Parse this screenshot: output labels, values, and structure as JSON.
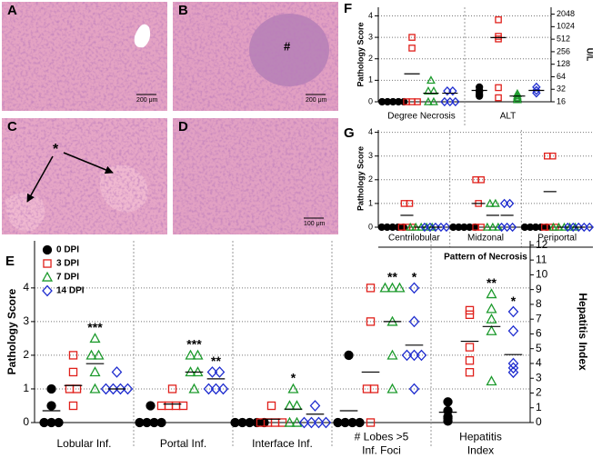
{
  "images": [
    {
      "label": "A",
      "scale": "200 μm"
    },
    {
      "label": "B",
      "scale": "200 μm",
      "mark": "#"
    },
    {
      "label": "C",
      "mark": "*"
    },
    {
      "label": "D",
      "scale": "100 μm"
    }
  ],
  "chart_data": [
    {
      "type": "dot",
      "label": "E",
      "ylabel": "Pathology Score",
      "y2label": "Hepatitis Index",
      "ylim": [
        0,
        5.4
      ],
      "yticks": [
        0,
        1,
        2,
        3,
        4
      ],
      "y2lim": [
        0,
        12.3
      ],
      "y2ticks": [
        0,
        1,
        2,
        3,
        4,
        5,
        6,
        7,
        8,
        9,
        10,
        11,
        12
      ],
      "grid": true,
      "legend": "upper left",
      "categories": [
        [
          "Lobular Inf."
        ],
        [
          "Portal Inf."
        ],
        [
          "Interface Inf."
        ],
        [
          "# Lobes >5",
          "Inf. Foci"
        ],
        [
          "Hepatitis",
          "Index"
        ]
      ],
      "category_axis": [
        "y",
        "y",
        "y",
        "y",
        "y2"
      ],
      "series": [
        {
          "name": "0 DPI",
          "color": "#000000",
          "marker": "circle",
          "filled": true,
          "values": [
            [
              1,
              0.5,
              0,
              0,
              0
            ],
            [
              0.5,
              0,
              0,
              0,
              0
            ],
            [
              0,
              0,
              0,
              0,
              0
            ],
            [
              2,
              0,
              0,
              0,
              0
            ],
            [
              1.4,
              0.8,
              0.4,
              0.3,
              0.1
            ]
          ],
          "means": [
            0.35,
            0.05,
            0,
            0.35,
            0.7
          ]
        },
        {
          "name": "3 DPI",
          "color": "#e0201b",
          "marker": "square",
          "filled": false,
          "values": [
            [
              2,
              1.5,
              1,
              1,
              0.5
            ],
            [
              1,
              0.5,
              0.5,
              0.5,
              0.5
            ],
            [
              0.5,
              0,
              0,
              0,
              0
            ],
            [
              4,
              3,
              1,
              1,
              0
            ],
            [
              7.6,
              7.3,
              5.1,
              4.2,
              3.4
            ]
          ],
          "means": [
            1.1,
            0.55,
            0.1,
            1.5,
            5.5
          ]
        },
        {
          "name": "7 DPI",
          "color": "#1c9a2c",
          "marker": "triangle",
          "filled": false,
          "values": [
            [
              2.5,
              2,
              2,
              1.5,
              1
            ],
            [
              2,
              2,
              1.5,
              1.5,
              1
            ],
            [
              1,
              0.5,
              0.5,
              0,
              0
            ],
            [
              4,
              4,
              4,
              3,
              2,
              1
            ],
            [
              8.7,
              7.7,
              7,
              6.2,
              2.8
            ]
          ],
          "means": [
            1.75,
            1.5,
            0.4,
            3,
            6.5
          ]
        },
        {
          "name": "14 DPI",
          "color": "#1f2dcf",
          "marker": "diamond",
          "filled": false,
          "values": [
            [
              1.5,
              1,
              1,
              1,
              1
            ],
            [
              1.5,
              1.5,
              1,
              1,
              1
            ],
            [
              0.5,
              0,
              0,
              0,
              0
            ],
            [
              4,
              3,
              2,
              2,
              2,
              1
            ],
            [
              7.5,
              6.2,
              4,
              3.7,
              3.4
            ]
          ],
          "means": [
            1,
            1.3,
            0.25,
            2.3,
            4.6
          ]
        }
      ],
      "annotations": [
        {
          "category": 0,
          "series": 2,
          "text": "***"
        },
        {
          "category": 1,
          "series": 2,
          "text": "***"
        },
        {
          "category": 1,
          "series": 3,
          "text": "**"
        },
        {
          "category": 2,
          "series": 2,
          "text": "*"
        },
        {
          "category": 3,
          "series": 2,
          "text": "**"
        },
        {
          "category": 3,
          "series": 3,
          "text": "*"
        },
        {
          "category": 4,
          "series": 2,
          "text": "**"
        },
        {
          "category": 4,
          "series": 3,
          "text": "*"
        }
      ]
    },
    {
      "type": "dot",
      "label": "F",
      "ylabel": "Pathology Score",
      "y2label": "U/L",
      "ylim": [
        0,
        4.4
      ],
      "yticks": [
        0,
        1,
        2,
        3,
        4
      ],
      "y2lim": [
        16,
        3000
      ],
      "y2scale": "log",
      "y2ticks": [
        16,
        32,
        64,
        128,
        256,
        512,
        1024,
        2048
      ],
      "grid": true,
      "categories": [
        [
          "Degree Necrosis"
        ],
        [
          "ALT"
        ]
      ],
      "category_axis": [
        "y",
        "y2"
      ],
      "series": [
        {
          "color": "#000000",
          "marker": "circle",
          "filled": true,
          "values": [
            [
              0,
              0,
              0,
              0,
              0
            ],
            [
              36,
              30,
              28,
              24,
              22
            ]
          ],
          "means": [
            0,
            30
          ]
        },
        {
          "color": "#e0201b",
          "marker": "square",
          "filled": false,
          "values": [
            [
              3,
              2.5,
              0,
              0,
              0
            ],
            [
              1500,
              600,
              520,
              35,
              20
            ]
          ],
          "means": [
            1.3,
            560
          ]
        },
        {
          "color": "#1c9a2c",
          "marker": "triangle",
          "filled": false,
          "values": [
            [
              1,
              0.5,
              0.5,
              0,
              0
            ],
            [
              25,
              22,
              20,
              18
            ]
          ],
          "means": [
            0.4,
            22
          ]
        },
        {
          "color": "#1f2dcf",
          "marker": "diamond",
          "filled": false,
          "values": [
            [
              0.5,
              0.5,
              0,
              0,
              0
            ],
            [
              36,
              30,
              26
            ]
          ],
          "means": [
            0.4,
            30
          ]
        }
      ]
    },
    {
      "type": "dot",
      "label": "G",
      "ylabel": "Pathology Score",
      "xlabel": "Pattern of Necrosis",
      "ylim": [
        0,
        4.1
      ],
      "yticks": [
        0,
        1,
        2,
        3,
        4
      ],
      "grid": true,
      "categories": [
        [
          "Centrilobular"
        ],
        [
          "Midzonal"
        ],
        [
          "Periportal"
        ]
      ],
      "category_axis": [
        "y",
        "y",
        "y"
      ],
      "series": [
        {
          "color": "#000000",
          "marker": "circle",
          "filled": true,
          "values": [
            [
              0,
              0,
              0,
              0,
              0
            ],
            [
              0,
              0,
              0,
              0,
              0
            ],
            [
              0,
              0,
              0,
              0,
              0
            ]
          ],
          "means": [
            0,
            0,
            0
          ]
        },
        {
          "color": "#e0201b",
          "marker": "square",
          "filled": false,
          "values": [
            [
              1,
              1,
              0,
              0,
              0
            ],
            [
              2,
              2,
              1,
              0,
              0
            ],
            [
              3,
              3,
              0,
              0,
              0
            ]
          ],
          "means": [
            0.5,
            1,
            1.5
          ]
        },
        {
          "color": "#1c9a2c",
          "marker": "triangle",
          "filled": false,
          "values": [
            [
              0,
              0,
              0,
              0,
              0
            ],
            [
              1,
              1,
              0,
              0,
              0
            ],
            [
              0,
              0,
              0,
              0,
              0
            ]
          ],
          "means": [
            0,
            0.5,
            0
          ]
        },
        {
          "color": "#1f2dcf",
          "marker": "diamond",
          "filled": false,
          "values": [
            [
              0,
              0,
              0,
              0,
              0
            ],
            [
              1,
              1,
              0,
              0,
              0
            ],
            [
              0,
              0,
              0,
              0,
              0
            ]
          ],
          "means": [
            0,
            0.5,
            0
          ]
        }
      ]
    }
  ]
}
